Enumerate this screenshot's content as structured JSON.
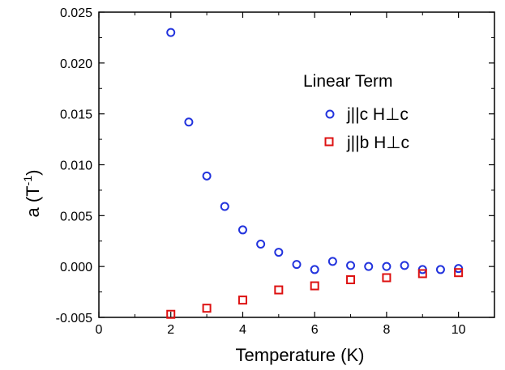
{
  "chart_data": {
    "type": "scatter",
    "title": "",
    "xlabel": "Temperature (K)",
    "ylabel_main": "a (T",
    "ylabel_sup": "-1",
    "ylabel_close": ")",
    "xlim": [
      0,
      11
    ],
    "ylim": [
      -0.005,
      0.025
    ],
    "x_ticks": [
      0,
      2,
      4,
      6,
      8,
      10
    ],
    "x_tick_labels": [
      "0",
      "2",
      "4",
      "6",
      "8",
      "10"
    ],
    "y_ticks": [
      -0.005,
      0.0,
      0.005,
      0.01,
      0.015,
      0.02,
      0.025
    ],
    "y_tick_labels": [
      "-0.005",
      "0.000",
      "0.005",
      "0.010",
      "0.015",
      "0.020",
      "0.025"
    ],
    "grid": false,
    "legend": {
      "title": "Linear Term",
      "placement": "top-right"
    },
    "series": [
      {
        "name": "j||c H⊥c",
        "marker": "circle",
        "color": "#2233dd",
        "x": [
          2,
          2.5,
          3,
          3.5,
          4,
          4.5,
          5,
          5.5,
          6,
          6.5,
          7,
          7.5,
          8,
          8.5,
          9,
          9.5,
          10
        ],
        "y": [
          0.023,
          0.0142,
          0.0089,
          0.0059,
          0.0036,
          0.0022,
          0.0014,
          0.0002,
          -0.0003,
          0.0005,
          0.0001,
          0.0,
          0.0,
          0.0001,
          -0.0003,
          -0.0003,
          -0.0002
        ]
      },
      {
        "name": "j||b H⊥c",
        "marker": "square",
        "color": "#dd1111",
        "x": [
          2,
          3,
          4,
          5,
          6,
          7,
          8,
          9,
          10
        ],
        "y": [
          -0.0047,
          -0.0041,
          -0.0033,
          -0.0023,
          -0.0019,
          -0.0013,
          -0.0011,
          -0.0007,
          -0.0006
        ]
      }
    ]
  }
}
